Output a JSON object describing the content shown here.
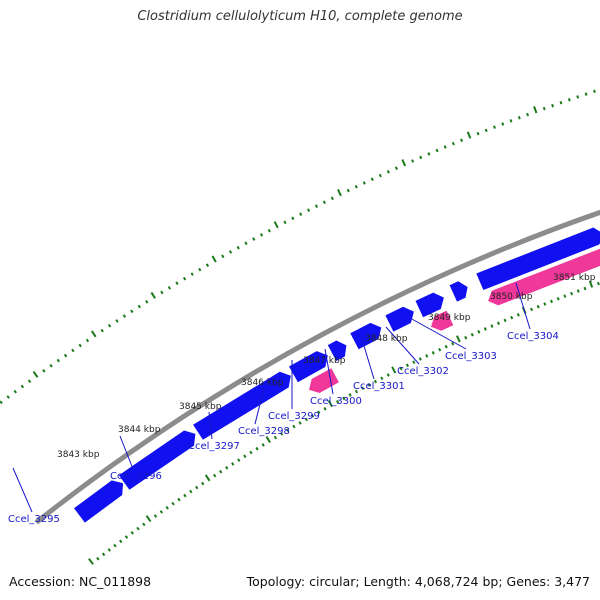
{
  "title": "Clostridium cellulolyticum H10, complete genome",
  "footer": {
    "accession": "Accession: NC_011898",
    "topology": "Topology: circular; Length: 4,068,724 bp; Genes: 3,477"
  },
  "colors": {
    "backbone": "#8c8c8c",
    "forward_gene": "#1010f0",
    "reverse_gene": "#f0389a",
    "ticks": "#1a7a1a",
    "tick_label": "#222222",
    "gene_label": "#1515c8"
  },
  "tick_labels": [
    "3843 kbp",
    "3844 kbp",
    "3845 kbp",
    "3846 kbp",
    "3847 kbp",
    "3848 kbp",
    "3849 kbp",
    "3850 kbp",
    "3851 kbp"
  ],
  "genes": [
    {
      "id": "Ccel_3295",
      "strand": "+"
    },
    {
      "id": "Ccel_3296",
      "strand": "+"
    },
    {
      "id": "Ccel_3297",
      "strand": "+"
    },
    {
      "id": "Ccel_3298",
      "strand": "-"
    },
    {
      "id": "Ccel_3299",
      "strand": "+"
    },
    {
      "id": "Ccel_3300",
      "strand": "+"
    },
    {
      "id": "Ccel_3301",
      "strand": "+"
    },
    {
      "id": "Ccel_3302",
      "strand": "-"
    },
    {
      "id": "Ccel_3303",
      "strand": "+"
    },
    {
      "id": "Ccel_3304",
      "strand": "-"
    }
  ]
}
